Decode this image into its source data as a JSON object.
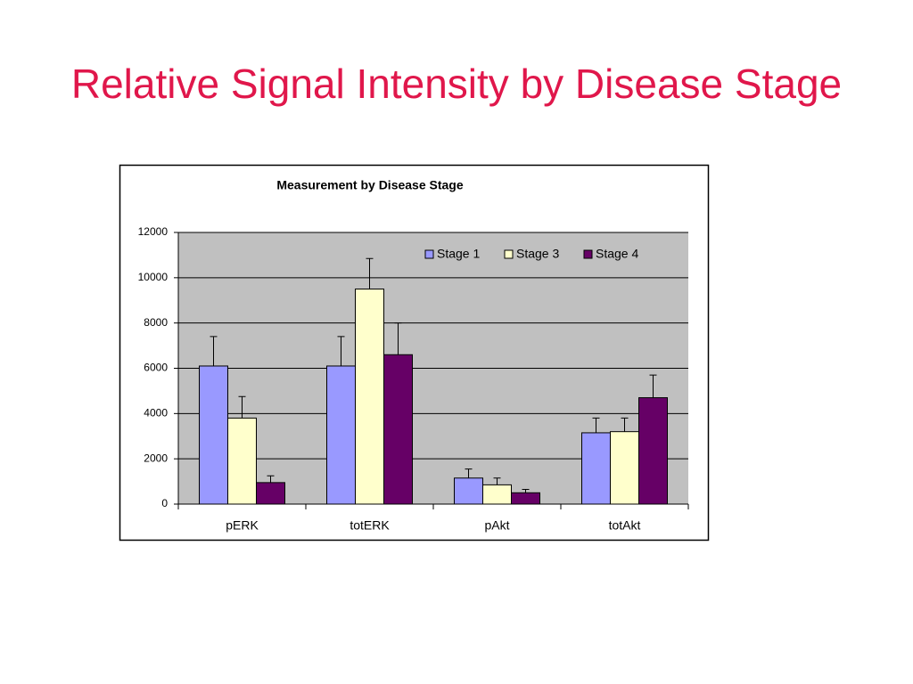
{
  "slide_title": "Relative Signal Intensity by Disease Stage",
  "chart_data": {
    "type": "bar",
    "title": "Measurement by Disease Stage",
    "categories": [
      "pERK",
      "totERK",
      "pAkt",
      "totAkt"
    ],
    "series": [
      {
        "name": "Stage 1",
        "color": "#9999ff",
        "values": [
          6100,
          6100,
          1150,
          3150
        ],
        "errors": [
          1300,
          1300,
          400,
          650
        ]
      },
      {
        "name": "Stage 3",
        "color": "#ffffcc",
        "values": [
          3800,
          9500,
          850,
          3200
        ],
        "errors": [
          950,
          1350,
          300,
          600
        ]
      },
      {
        "name": "Stage 4",
        "color": "#660066",
        "values": [
          950,
          6600,
          500,
          4700
        ],
        "errors": [
          300,
          1400,
          150,
          1000
        ]
      }
    ],
    "ylim": [
      0,
      12000
    ],
    "yticks": [
      0,
      2000,
      4000,
      6000,
      8000,
      10000,
      12000
    ],
    "grid": true
  }
}
